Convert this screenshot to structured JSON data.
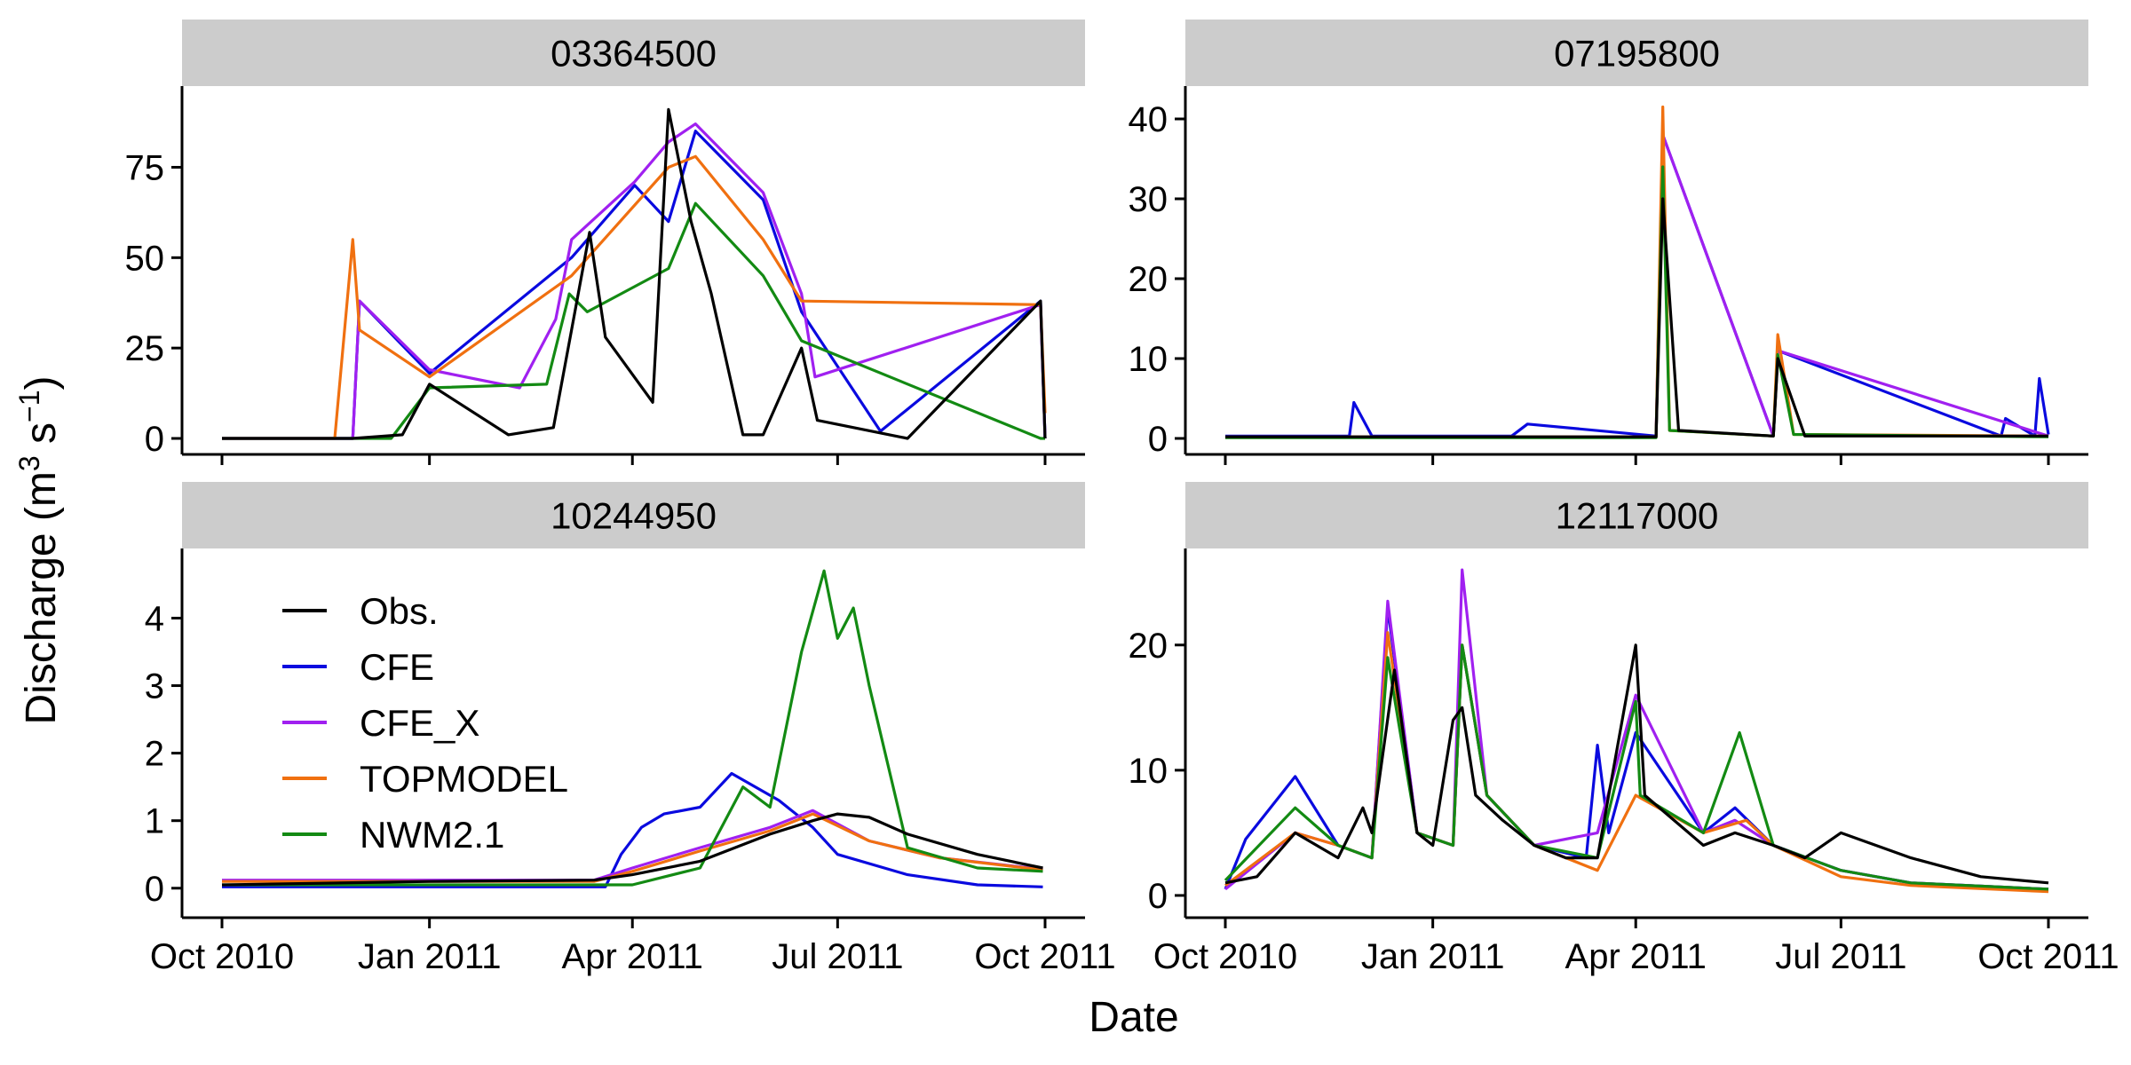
{
  "figure": {
    "ylabel_main": "Discharge (m",
    "ylabel_sup1": "3",
    "ylabel_mid": " s",
    "ylabel_sup2": "−1",
    "ylabel_end": ")",
    "xlabel": "Date"
  },
  "legend": [
    {
      "label": "Obs.",
      "color": "#000000"
    },
    {
      "label": "CFE",
      "color": "#0a0adf"
    },
    {
      "label": "CFE_X",
      "color": "#a020f0"
    },
    {
      "label": "TOPMODEL",
      "color": "#f07010"
    },
    {
      "label": "NWM2.1",
      "color": "#138a13"
    }
  ],
  "chart_data": [
    {
      "type": "line",
      "title": "03364500",
      "x_ticks": [
        "Oct 2010",
        "Jan 2011",
        "Apr 2011",
        "Jul 2011",
        "Oct 2011"
      ],
      "y_ticks": [
        0,
        25,
        50,
        75
      ],
      "ylim": [
        0,
        95
      ],
      "series": [
        {
          "name": "Obs.",
          "x": [
            "2010-10-01",
            "2010-11-28",
            "2010-12-20",
            "2011-01-01",
            "2011-02-05",
            "2011-02-25",
            "2011-03-05",
            "2011-03-13",
            "2011-03-20",
            "2011-04-10",
            "2011-04-17",
            "2011-04-27",
            "2011-05-06",
            "2011-05-20",
            "2011-05-29",
            "2011-06-15",
            "2011-06-22",
            "2011-08-01",
            "2011-09-29",
            "2011-10-01"
          ],
          "y": [
            0,
            0,
            1,
            15,
            1,
            3,
            30,
            57,
            28,
            10,
            91,
            60,
            40,
            1,
            1,
            25,
            5,
            0,
            38,
            0
          ]
        },
        {
          "name": "CFE",
          "x": [
            "2010-10-01",
            "2010-11-28",
            "2010-12-01",
            "2011-01-01",
            "2011-03-05",
            "2011-04-02",
            "2011-04-17",
            "2011-04-29",
            "2011-05-29",
            "2011-06-15",
            "2011-07-20",
            "2011-09-29",
            "2011-10-01"
          ],
          "y": [
            0,
            0,
            38,
            18,
            50,
            70,
            60,
            85,
            66,
            35,
            2,
            38,
            0
          ]
        },
        {
          "name": "CFE_X",
          "x": [
            "2010-10-01",
            "2010-11-28",
            "2010-12-01",
            "2011-01-01",
            "2011-02-10",
            "2011-02-26",
            "2011-03-05",
            "2011-04-02",
            "2011-04-17",
            "2011-04-29",
            "2011-05-29",
            "2011-06-15",
            "2011-06-21",
            "2011-09-29",
            "2011-10-01"
          ],
          "y": [
            0,
            0,
            38,
            19,
            14,
            33,
            55,
            71,
            82,
            87,
            68,
            40,
            17,
            37,
            0
          ]
        },
        {
          "name": "TOPMODEL",
          "x": [
            "2010-10-01",
            "2010-11-20",
            "2010-11-28",
            "2010-12-01",
            "2011-01-01",
            "2011-03-05",
            "2011-04-17",
            "2011-04-29",
            "2011-05-29",
            "2011-06-15",
            "2011-09-29",
            "2011-10-01"
          ],
          "y": [
            0,
            0,
            55,
            30,
            17,
            45,
            75,
            78,
            55,
            38,
            37,
            7
          ]
        },
        {
          "name": "NWM2.1",
          "x": [
            "2010-10-01",
            "2010-12-15",
            "2011-01-01",
            "2011-02-22",
            "2011-03-04",
            "2011-03-12",
            "2011-04-17",
            "2011-04-29",
            "2011-05-29",
            "2011-06-15",
            "2011-09-29",
            "2011-10-01"
          ],
          "y": [
            0,
            0,
            14,
            15,
            40,
            35,
            47,
            65,
            45,
            27,
            0,
            0
          ]
        }
      ]
    },
    {
      "type": "line",
      "title": "07195800",
      "x_ticks": [
        "Oct 2010",
        "Jan 2011",
        "Apr 2011",
        "Jul 2011",
        "Oct 2011"
      ],
      "y_ticks": [
        0,
        10,
        20,
        30,
        40
      ],
      "ylim": [
        0,
        43
      ],
      "series": [
        {
          "name": "Obs.",
          "x": [
            "2010-10-01",
            "2011-04-10",
            "2011-04-13",
            "2011-04-20",
            "2011-06-01",
            "2011-06-03",
            "2011-06-15",
            "2011-10-01"
          ],
          "y": [
            0.2,
            0.2,
            30,
            1,
            0.3,
            10,
            0.3,
            0.3
          ]
        },
        {
          "name": "CFE",
          "x": [
            "2010-10-01",
            "2010-11-25",
            "2010-11-27",
            "2010-12-05",
            "2011-02-05",
            "2011-02-12",
            "2011-04-10",
            "2011-04-13",
            "2011-06-01",
            "2011-06-03",
            "2011-09-10",
            "2011-09-12",
            "2011-09-25",
            "2011-09-27",
            "2011-10-01"
          ],
          "y": [
            0.3,
            0.3,
            4.5,
            0.3,
            0.3,
            1.8,
            0.3,
            38,
            0.3,
            11,
            0.3,
            2.5,
            0.3,
            7.5,
            0.5
          ]
        },
        {
          "name": "CFE_X",
          "x": [
            "2010-10-01",
            "2011-04-10",
            "2011-04-13",
            "2011-06-01",
            "2011-06-03",
            "2011-10-01"
          ],
          "y": [
            0.2,
            0.2,
            38,
            0.3,
            11,
            0.3
          ]
        },
        {
          "name": "TOPMODEL",
          "x": [
            "2010-10-01",
            "2011-04-10",
            "2011-04-13",
            "2011-04-16",
            "2011-06-01",
            "2011-06-03",
            "2011-06-10",
            "2011-10-01"
          ],
          "y": [
            0.2,
            0.2,
            41.5,
            1,
            0.3,
            13,
            0.5,
            0.3
          ]
        },
        {
          "name": "NWM2.1",
          "x": [
            "2010-10-01",
            "2011-04-10",
            "2011-04-13",
            "2011-04-16",
            "2011-06-01",
            "2011-06-03",
            "2011-06-10",
            "2011-10-01"
          ],
          "y": [
            0.1,
            0.1,
            34,
            1,
            0.3,
            10.5,
            0.5,
            0.2
          ]
        }
      ]
    },
    {
      "type": "line",
      "title": "10244950",
      "x_ticks": [
        "Oct 2010",
        "Jan 2011",
        "Apr 2011",
        "Jul 2011",
        "Oct 2011"
      ],
      "y_ticks": [
        0,
        1,
        2,
        3,
        4
      ],
      "ylim": [
        -0.2,
        4.9
      ],
      "series": [
        {
          "name": "Obs.",
          "x": [
            "2010-10-01",
            "2011-01-01",
            "2011-03-15",
            "2011-04-01",
            "2011-05-01",
            "2011-06-01",
            "2011-06-20",
            "2011-07-01",
            "2011-07-15",
            "2011-08-01",
            "2011-09-01",
            "2011-09-30"
          ],
          "y": [
            0.05,
            0.1,
            0.12,
            0.2,
            0.4,
            0.8,
            1.0,
            1.1,
            1.05,
            0.8,
            0.5,
            0.3
          ]
        },
        {
          "name": "CFE",
          "x": [
            "2010-10-01",
            "2011-03-20",
            "2011-03-27",
            "2011-04-05",
            "2011-04-15",
            "2011-05-01",
            "2011-05-15",
            "2011-06-05",
            "2011-06-20",
            "2011-07-01",
            "2011-08-01",
            "2011-09-01",
            "2011-09-30"
          ],
          "y": [
            0.02,
            0.02,
            0.5,
            0.9,
            1.1,
            1.2,
            1.7,
            1.3,
            0.9,
            0.5,
            0.2,
            0.05,
            0.02
          ]
        },
        {
          "name": "CFE_X",
          "x": [
            "2010-10-01",
            "2011-03-15",
            "2011-04-01",
            "2011-05-01",
            "2011-06-01",
            "2011-06-20",
            "2011-07-15",
            "2011-08-15",
            "2011-09-30"
          ],
          "y": [
            0.12,
            0.12,
            0.3,
            0.6,
            0.9,
            1.15,
            0.7,
            0.45,
            0.28
          ]
        },
        {
          "name": "TOPMODEL",
          "x": [
            "2010-10-01",
            "2011-03-15",
            "2011-04-01",
            "2011-05-01",
            "2011-06-01",
            "2011-06-20",
            "2011-07-15",
            "2011-08-15",
            "2011-09-30"
          ],
          "y": [
            0.1,
            0.1,
            0.25,
            0.55,
            0.85,
            1.1,
            0.7,
            0.45,
            0.27
          ]
        },
        {
          "name": "NWM2.1",
          "x": [
            "2010-10-01",
            "2011-04-01",
            "2011-05-01",
            "2011-05-20",
            "2011-06-01",
            "2011-06-15",
            "2011-06-25",
            "2011-07-01",
            "2011-07-08",
            "2011-07-15",
            "2011-08-01",
            "2011-09-01",
            "2011-09-30"
          ],
          "y": [
            0.05,
            0.05,
            0.3,
            1.5,
            1.2,
            3.5,
            4.7,
            3.7,
            4.15,
            3.0,
            0.6,
            0.3,
            0.25
          ]
        }
      ]
    },
    {
      "type": "line",
      "title": "12117000",
      "x_ticks": [
        "Oct 2010",
        "Jan 2011",
        "Apr 2011",
        "Jul 2011",
        "Oct 2011"
      ],
      "y_ticks": [
        0,
        10,
        20
      ],
      "ylim": [
        -0.5,
        27
      ],
      "series": [
        {
          "name": "Obs.",
          "x": [
            "2010-10-01",
            "2010-10-15",
            "2010-11-01",
            "2010-11-20",
            "2010-12-01",
            "2010-12-05",
            "2010-12-15",
            "2010-12-25",
            "2011-01-01",
            "2011-01-10",
            "2011-01-14",
            "2011-01-20",
            "2011-02-01",
            "2011-02-15",
            "2011-03-01",
            "2011-03-15",
            "2011-04-01",
            "2011-04-05",
            "2011-05-01",
            "2011-05-15",
            "2011-06-01",
            "2011-06-15",
            "2011-07-01",
            "2011-08-01",
            "2011-09-01",
            "2011-10-01"
          ],
          "y": [
            1,
            1.5,
            5,
            3,
            7,
            5,
            18,
            5,
            4,
            14,
            15,
            8,
            6,
            4,
            3,
            3,
            20,
            8,
            4,
            5,
            4,
            3,
            5,
            3,
            1.5,
            1
          ]
        },
        {
          "name": "CFE",
          "x": [
            "2010-10-01",
            "2010-10-10",
            "2010-11-01",
            "2010-11-20",
            "2010-12-05",
            "2010-12-12",
            "2010-12-25",
            "2011-01-10",
            "2011-01-14",
            "2011-01-25",
            "2011-02-15",
            "2011-03-10",
            "2011-03-15",
            "2011-03-20",
            "2011-04-01",
            "2011-05-01",
            "2011-05-15",
            "2011-06-01",
            "2011-07-01",
            "2011-08-01",
            "2011-10-01"
          ],
          "y": [
            0.5,
            4.5,
            9.5,
            4,
            3,
            23,
            5,
            4,
            20,
            8,
            4,
            3,
            12,
            5,
            13,
            5,
            7,
            4,
            2,
            1,
            0.5
          ]
        },
        {
          "name": "CFE_X",
          "x": [
            "2010-10-01",
            "2010-11-01",
            "2010-11-20",
            "2010-12-05",
            "2010-12-12",
            "2010-12-25",
            "2011-01-10",
            "2011-01-14",
            "2011-01-25",
            "2011-02-15",
            "2011-03-15",
            "2011-04-01",
            "2011-05-01",
            "2011-05-15",
            "2011-06-01",
            "2011-07-01",
            "2011-08-01",
            "2011-10-01"
          ],
          "y": [
            0.5,
            5,
            4,
            3,
            23.5,
            5,
            4,
            26,
            8,
            4,
            5,
            16,
            5,
            6,
            4,
            2,
            1,
            0.5
          ]
        },
        {
          "name": "TOPMODEL",
          "x": [
            "2010-10-01",
            "2010-11-01",
            "2010-11-20",
            "2010-12-05",
            "2010-12-12",
            "2010-12-25",
            "2011-01-10",
            "2011-01-14",
            "2011-01-25",
            "2011-02-15",
            "2011-03-15",
            "2011-04-01",
            "2011-05-01",
            "2011-05-20",
            "2011-06-01",
            "2011-07-01",
            "2011-08-01",
            "2011-10-01"
          ],
          "y": [
            0.8,
            5,
            4,
            3,
            21,
            5,
            4,
            20,
            8,
            4,
            2,
            8,
            5,
            6,
            4,
            1.5,
            0.8,
            0.3
          ]
        },
        {
          "name": "NWM2.1",
          "x": [
            "2010-10-01",
            "2010-11-01",
            "2010-11-20",
            "2010-12-05",
            "2010-12-12",
            "2010-12-25",
            "2011-01-10",
            "2011-01-14",
            "2011-01-25",
            "2011-02-15",
            "2011-03-15",
            "2011-04-01",
            "2011-04-03",
            "2011-05-01",
            "2011-05-17",
            "2011-06-01",
            "2011-07-01",
            "2011-08-01",
            "2011-10-01"
          ],
          "y": [
            1.2,
            7,
            4,
            3,
            19,
            5,
            4,
            20,
            8,
            4,
            3,
            15.5,
            8,
            5,
            13,
            4,
            2,
            1,
            0.5
          ]
        }
      ]
    }
  ]
}
